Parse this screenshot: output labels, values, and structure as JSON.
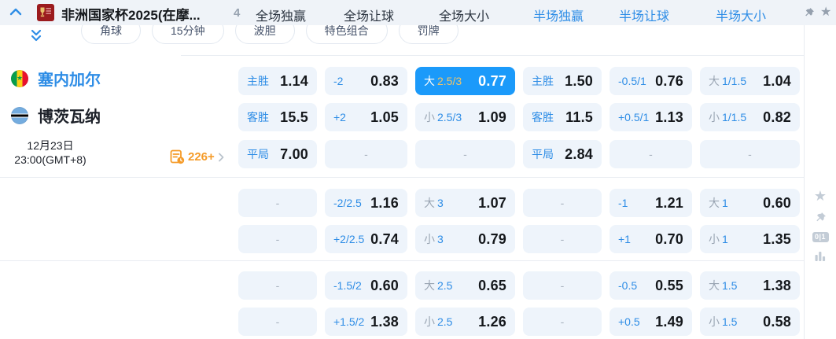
{
  "colors": {
    "accent_blue": "#2e8de6",
    "highlight_bg": "#1b9afa",
    "highlight_gold": "#f0c468",
    "cell_bg": "#eef4fb",
    "orange": "#f59b28"
  },
  "header": {
    "league_title": "非洲国家杯2025(在摩...",
    "match_count": "4",
    "market_tabs": [
      {
        "label": "全场独赢",
        "style": "dark"
      },
      {
        "label": "全场让球",
        "style": "dark"
      },
      {
        "label": "全场大小",
        "style": "dark"
      },
      {
        "label": "半场独赢",
        "style": "blue"
      },
      {
        "label": "半场让球",
        "style": "blue"
      },
      {
        "label": "半场大小",
        "style": "blue"
      }
    ]
  },
  "category_pills": [
    "角球",
    "15分钟",
    "波胆",
    "特色组合",
    "罚牌"
  ],
  "match": {
    "home_team": "塞内加尔",
    "away_team": "博茨瓦纳",
    "date": "12月23日",
    "time": "23:00(GMT+8)",
    "more_markets": "226+"
  },
  "odds_rows": [
    [
      {
        "line": "主胜",
        "value": "1.14"
      },
      {
        "line": "-2",
        "value": "0.83"
      },
      {
        "prefix": "大",
        "line": "2.5/3",
        "value": "0.77",
        "highlight": true
      },
      {
        "line": "主胜",
        "value": "1.50"
      },
      {
        "line": "-0.5/1",
        "value": "0.76"
      },
      {
        "prefix": "大",
        "line": "1/1.5",
        "value": "1.04"
      }
    ],
    [
      {
        "line": "客胜",
        "value": "15.5"
      },
      {
        "line": "+2",
        "value": "1.05"
      },
      {
        "prefix": "小",
        "line": "2.5/3",
        "value": "1.09"
      },
      {
        "line": "客胜",
        "value": "11.5"
      },
      {
        "line": "+0.5/1",
        "value": "1.13"
      },
      {
        "prefix": "小",
        "line": "1/1.5",
        "value": "0.82"
      }
    ],
    [
      {
        "line": "平局",
        "value": "7.00"
      },
      {
        "dash": true
      },
      {
        "dash": true
      },
      {
        "line": "平局",
        "value": "2.84"
      },
      {
        "dash": true
      },
      {
        "dash": true
      }
    ],
    [
      {
        "dash": true
      },
      {
        "line": "-2/2.5",
        "value": "1.16"
      },
      {
        "prefix": "大",
        "line": "3",
        "value": "1.07"
      },
      {
        "dash": true
      },
      {
        "line": "-1",
        "value": "1.21"
      },
      {
        "prefix": "大",
        "line": "1",
        "value": "0.60"
      }
    ],
    [
      {
        "dash": true
      },
      {
        "line": "+2/2.5",
        "value": "0.74"
      },
      {
        "prefix": "小",
        "line": "3",
        "value": "0.79"
      },
      {
        "dash": true
      },
      {
        "line": "+1",
        "value": "0.70"
      },
      {
        "prefix": "小",
        "line": "1",
        "value": "1.35"
      }
    ],
    [
      {
        "dash": true
      },
      {
        "line": "-1.5/2",
        "value": "0.60"
      },
      {
        "prefix": "大",
        "line": "2.5",
        "value": "0.65"
      },
      {
        "dash": true
      },
      {
        "line": "-0.5",
        "value": "0.55"
      },
      {
        "prefix": "大",
        "line": "1.5",
        "value": "1.38"
      }
    ],
    [
      {
        "dash": true
      },
      {
        "line": "+1.5/2",
        "value": "1.38"
      },
      {
        "prefix": "小",
        "line": "2.5",
        "value": "1.26"
      },
      {
        "dash": true
      },
      {
        "line": "+0.5",
        "value": "1.49"
      },
      {
        "prefix": "小",
        "line": "1.5",
        "value": "0.58"
      }
    ]
  ],
  "rail": {
    "history_badge": "0|1"
  }
}
